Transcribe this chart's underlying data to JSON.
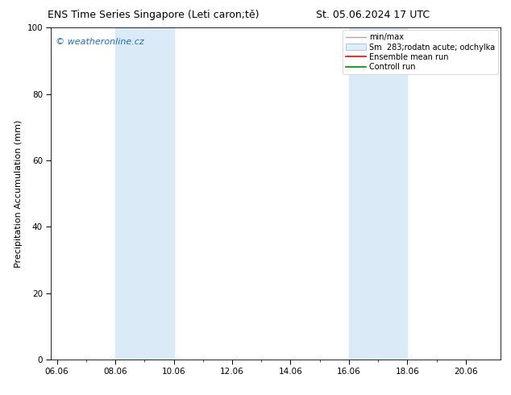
{
  "title_left": "ENS Time Series Singapore (Leti caron;tě)",
  "title_right": "St. 05.06.2024 17 UTC",
  "ylabel": "Precipitation Accumulation (mm)",
  "ylim": [
    0,
    100
  ],
  "xtick_labels": [
    "06.06",
    "08.06",
    "10.06",
    "12.06",
    "14.06",
    "16.06",
    "18.06",
    "20.06"
  ],
  "xtick_positions": [
    0,
    2,
    4,
    6,
    8,
    10,
    12,
    14
  ],
  "ytick_labels": [
    "0",
    "20",
    "40",
    "60",
    "80",
    "100"
  ],
  "ytick_positions": [
    0,
    20,
    40,
    60,
    80,
    100
  ],
  "xlim": [
    -0.2,
    15.2
  ],
  "shade_bands": [
    {
      "x_start": 2.0,
      "x_end": 4.0
    },
    {
      "x_start": 10.0,
      "x_end": 12.0
    }
  ],
  "shade_color": "#daeaf7",
  "watermark_text": "© weatheronline.cz",
  "watermark_color": "#1a6cc8",
  "legend_labels": [
    "min/max",
    "Sm  283;rodatn acute; odchylka",
    "Ensemble mean run",
    "Controll run"
  ],
  "legend_colors": [
    "#aaaaaa",
    "#cccccc",
    "#ff0000",
    "#008800"
  ],
  "background_color": "#ffffff",
  "title_fontsize": 9,
  "ylabel_fontsize": 8,
  "tick_fontsize": 7.5,
  "legend_fontsize": 7,
  "watermark_fontsize": 8
}
